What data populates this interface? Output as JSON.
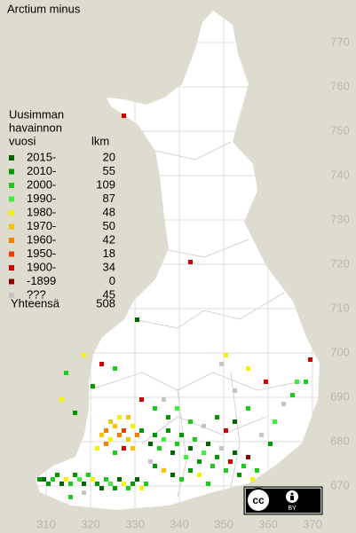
{
  "title": "Arctium minus",
  "legend": {
    "header": [
      "Uusimman",
      "havainnon",
      "vuosi"
    ],
    "count_header": "lkm",
    "entries": [
      {
        "label": "2015-",
        "count": 20,
        "color": "#006400"
      },
      {
        "label": "2010-",
        "count": 55,
        "color": "#009a00"
      },
      {
        "label": "2000-",
        "count": 109,
        "color": "#1ccc1c"
      },
      {
        "label": "1990-",
        "count": 87,
        "color": "#3cf03c"
      },
      {
        "label": "1980-",
        "count": 48,
        "color": "#f4f400"
      },
      {
        "label": "1970-",
        "count": 50,
        "color": "#f4c400"
      },
      {
        "label": "1960-",
        "count": 42,
        "color": "#f48000"
      },
      {
        "label": "1950-",
        "count": 18,
        "color": "#f03c00"
      },
      {
        "label": "1900-",
        "count": 34,
        "color": "#d00000"
      },
      {
        "label": "-1899",
        "count": 0,
        "color": "#8c0000"
      },
      {
        "label": "???",
        "count": 45,
        "color": "#c4c4c4"
      }
    ],
    "total_label": "Yhteensä",
    "total": 508
  },
  "x_ticks": [
    310,
    320,
    330,
    340,
    350,
    360,
    370
  ],
  "y_ticks": [
    670,
    680,
    690,
    700,
    710,
    720,
    730,
    740,
    750,
    760,
    770
  ],
  "observations": [
    [
      308,
      672,
      1
    ],
    [
      309,
      672,
      0
    ],
    [
      310,
      671,
      1
    ],
    [
      311,
      672,
      2
    ],
    [
      312,
      673,
      1
    ],
    [
      313,
      671,
      0
    ],
    [
      314,
      672,
      4
    ],
    [
      315,
      671,
      2
    ],
    [
      316,
      673,
      1
    ],
    [
      317,
      672,
      3
    ],
    [
      318,
      671,
      0
    ],
    [
      319,
      673,
      2
    ],
    [
      320,
      672,
      4
    ],
    [
      321,
      671,
      1
    ],
    [
      322,
      670,
      0
    ],
    [
      323,
      672,
      2
    ],
    [
      324,
      671,
      3
    ],
    [
      325,
      670,
      1
    ],
    [
      326,
      672,
      0
    ],
    [
      327,
      671,
      4
    ],
    [
      328,
      670,
      2
    ],
    [
      329,
      671,
      1
    ],
    [
      330,
      672,
      0
    ],
    [
      331,
      670,
      4
    ],
    [
      332,
      671,
      2
    ],
    [
      318,
      669,
      10
    ],
    [
      315,
      668,
      2
    ],
    [
      322,
      682,
      5
    ],
    [
      323,
      683,
      6
    ],
    [
      324,
      681,
      4
    ],
    [
      325,
      684,
      5
    ],
    [
      326,
      682,
      6
    ],
    [
      327,
      683,
      7
    ],
    [
      328,
      681,
      5
    ],
    [
      329,
      684,
      4
    ],
    [
      330,
      682,
      6
    ],
    [
      324,
      685,
      5
    ],
    [
      326,
      686,
      4
    ],
    [
      328,
      686,
      5
    ],
    [
      323,
      680,
      6
    ],
    [
      327,
      679,
      8
    ],
    [
      329,
      679,
      5
    ],
    [
      331,
      683,
      1
    ],
    [
      325,
      678,
      2
    ],
    [
      321,
      679,
      4
    ],
    [
      333,
      680,
      0
    ],
    [
      334,
      682,
      1
    ],
    [
      335,
      679,
      2
    ],
    [
      336,
      681,
      3
    ],
    [
      337,
      683,
      1
    ],
    [
      338,
      678,
      0
    ],
    [
      339,
      680,
      2
    ],
    [
      340,
      682,
      1
    ],
    [
      341,
      677,
      3
    ],
    [
      342,
      679,
      0
    ],
    [
      343,
      681,
      2
    ],
    [
      344,
      676,
      1
    ],
    [
      345,
      678,
      3
    ],
    [
      346,
      680,
      0
    ],
    [
      347,
      675,
      2
    ],
    [
      348,
      677,
      1
    ],
    [
      349,
      679,
      10
    ],
    [
      350,
      674,
      2
    ],
    [
      351,
      676,
      8
    ],
    [
      352,
      678,
      0
    ],
    [
      353,
      673,
      1
    ],
    [
      354,
      675,
      2
    ],
    [
      355,
      677,
      9
    ],
    [
      356,
      672,
      4
    ],
    [
      357,
      674,
      2
    ],
    [
      334,
      675,
      1
    ],
    [
      336,
      674,
      5
    ],
    [
      338,
      673,
      0
    ],
    [
      340,
      672,
      2
    ],
    [
      342,
      674,
      1
    ],
    [
      344,
      673,
      4
    ],
    [
      346,
      671,
      2
    ],
    [
      333,
      676,
      10
    ],
    [
      337,
      686,
      1
    ],
    [
      339,
      688,
      3
    ],
    [
      342,
      685,
      2
    ],
    [
      345,
      684,
      10
    ],
    [
      348,
      686,
      1
    ],
    [
      350,
      683,
      8
    ],
    [
      352,
      685,
      0
    ],
    [
      355,
      688,
      2
    ],
    [
      358,
      682,
      10
    ],
    [
      360,
      680,
      1
    ],
    [
      361,
      685,
      3
    ],
    [
      363,
      689,
      10
    ],
    [
      365,
      691,
      2
    ],
    [
      366,
      694,
      3
    ],
    [
      359,
      694,
      8
    ],
    [
      355,
      697,
      4
    ],
    [
      352,
      692,
      10
    ],
    [
      349,
      698,
      10
    ],
    [
      350,
      700,
      4
    ],
    [
      336,
      690,
      10
    ],
    [
      334,
      688,
      2
    ],
    [
      331,
      690,
      8
    ],
    [
      320,
      693,
      1
    ],
    [
      318,
      700,
      4
    ],
    [
      322,
      698,
      8
    ],
    [
      325,
      697,
      2
    ],
    [
      314,
      696,
      2
    ],
    [
      313,
      690,
      4
    ],
    [
      316,
      687,
      1
    ],
    [
      330,
      708,
      0
    ],
    [
      342,
      721,
      8
    ],
    [
      327,
      754,
      8
    ],
    [
      369,
      699,
      8
    ],
    [
      368,
      694,
      2
    ]
  ],
  "badge": {
    "cc": "cc",
    "by": "BY"
  }
}
